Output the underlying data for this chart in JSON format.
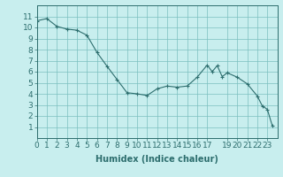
{
  "x": [
    0,
    1,
    2,
    3,
    4,
    5,
    6,
    7,
    8,
    9,
    10,
    11,
    12,
    13,
    14,
    15,
    16,
    17,
    17.5,
    18,
    18.5,
    19,
    20,
    21,
    22,
    22.5,
    23,
    23.5
  ],
  "y": [
    10.6,
    10.8,
    10.1,
    9.85,
    9.75,
    9.3,
    7.75,
    6.5,
    5.3,
    4.1,
    4.0,
    3.85,
    4.45,
    4.7,
    4.6,
    4.7,
    5.5,
    6.6,
    6.0,
    6.55,
    5.55,
    5.9,
    5.5,
    4.9,
    3.8,
    2.9,
    2.6,
    1.1
  ],
  "line_color": "#2d6e6e",
  "marker_color": "#2d6e6e",
  "bg_color": "#c8eeee",
  "grid_color": "#7bbfbf",
  "xlabel": "Humidex (Indice chaleur)",
  "xlim": [
    0,
    24
  ],
  "ylim": [
    0,
    12
  ],
  "xticks": [
    0,
    1,
    2,
    3,
    4,
    5,
    6,
    7,
    8,
    9,
    10,
    11,
    12,
    13,
    14,
    15,
    16,
    17,
    19,
    20,
    21,
    22,
    23
  ],
  "yticks": [
    1,
    2,
    3,
    4,
    5,
    6,
    7,
    8,
    9,
    10,
    11
  ],
  "xlabel_fontsize": 7,
  "tick_fontsize": 6.5
}
